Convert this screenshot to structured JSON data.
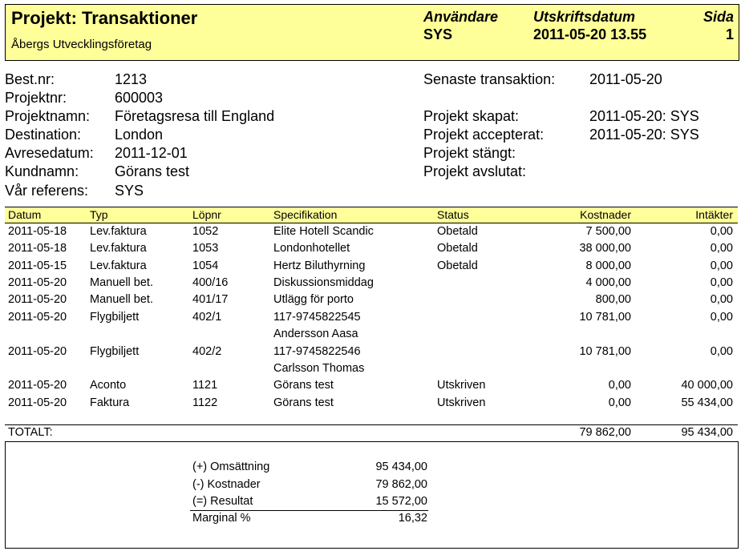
{
  "header": {
    "title": "Projekt: Transaktioner",
    "company": "Åbergs Utvecklingsföretag",
    "user_label": "Användare",
    "user_value": "SYS",
    "printdate_label": "Utskriftsdatum",
    "printdate_value": "2011-05-20 13.55",
    "page_label": "Sida",
    "page_value": "1"
  },
  "info_left": [
    {
      "label": "Best.nr:",
      "value": "1213"
    },
    {
      "label": "Projektnr:",
      "value": "600003"
    },
    {
      "label": "Projektnamn:",
      "value": "Företagsresa till England"
    },
    {
      "label": "Destination:",
      "value": "London"
    },
    {
      "label": "Avresedatum:",
      "value": "2011-12-01"
    },
    {
      "label": "Kundnamn:",
      "value": "Görans test"
    },
    {
      "label": "Vår referens:",
      "value": "SYS"
    }
  ],
  "info_right": {
    "last_tx_label": "Senaste transaktion:",
    "last_tx_value": "2011-05-20",
    "created_label": "Projekt skapat:",
    "created_value": "2011-05-20: SYS",
    "accepted_label": "Projekt accepterat:",
    "accepted_value": "2011-05-20: SYS",
    "closed_label": "Projekt stängt:",
    "finished_label": "Projekt avslutat:"
  },
  "table": {
    "columns": [
      "Datum",
      "Typ",
      "Löpnr",
      "Specifikation",
      "Status",
      "Kostnader",
      "Intäkter"
    ],
    "rows": [
      {
        "datum": "2011-05-18",
        "typ": "Lev.faktura",
        "lopnr": "1052",
        "spec": "Elite Hotell Scandic",
        "spec2": "",
        "status": "Obetald",
        "kost": "7 500,00",
        "intakt": "0,00"
      },
      {
        "datum": "2011-05-18",
        "typ": "Lev.faktura",
        "lopnr": "1053",
        "spec": "Londonhotellet",
        "spec2": "",
        "status": "Obetald",
        "kost": "38 000,00",
        "intakt": "0,00"
      },
      {
        "datum": "2011-05-15",
        "typ": "Lev.faktura",
        "lopnr": "1054",
        "spec": "Hertz Biluthyrning",
        "spec2": "",
        "status": "Obetald",
        "kost": "8 000,00",
        "intakt": "0,00"
      },
      {
        "datum": "2011-05-20",
        "typ": "Manuell bet.",
        "lopnr": "400/16",
        "spec": "Diskussionsmiddag",
        "spec2": "",
        "status": "",
        "kost": "4 000,00",
        "intakt": "0,00"
      },
      {
        "datum": "2011-05-20",
        "typ": "Manuell bet.",
        "lopnr": "401/17",
        "spec": "Utlägg för porto",
        "spec2": "",
        "status": "",
        "kost": "800,00",
        "intakt": "0,00"
      },
      {
        "datum": "2011-05-20",
        "typ": "Flygbiljett",
        "lopnr": "402/1",
        "spec": "117-9745822545",
        "spec2": "Andersson Aasa",
        "status": "",
        "kost": "10 781,00",
        "intakt": "0,00"
      },
      {
        "datum": "2011-05-20",
        "typ": "Flygbiljett",
        "lopnr": "402/2",
        "spec": "117-9745822546",
        "spec2": "Carlsson Thomas",
        "status": "",
        "kost": "10 781,00",
        "intakt": "0,00"
      },
      {
        "datum": "2011-05-20",
        "typ": "Aconto",
        "lopnr": "1121",
        "spec": "Görans test",
        "spec2": "",
        "status": "Utskriven",
        "kost": "0,00",
        "intakt": "40 000,00"
      },
      {
        "datum": "2011-05-20",
        "typ": "Faktura",
        "lopnr": "1122",
        "spec": "Görans test",
        "spec2": "",
        "status": "Utskriven",
        "kost": "0,00",
        "intakt": "55 434,00"
      }
    ],
    "total_label": "TOTALT:",
    "total_kost": "79 862,00",
    "total_intakt": "95 434,00"
  },
  "summary": [
    {
      "label": "(+) Omsättning",
      "value": "95 434,00"
    },
    {
      "label": "(-) Kostnader",
      "value": "79 862,00"
    },
    {
      "label": "(=) Resultat",
      "value": "15 572,00"
    },
    {
      "label": "Marginal %",
      "value": "16,32"
    }
  ]
}
